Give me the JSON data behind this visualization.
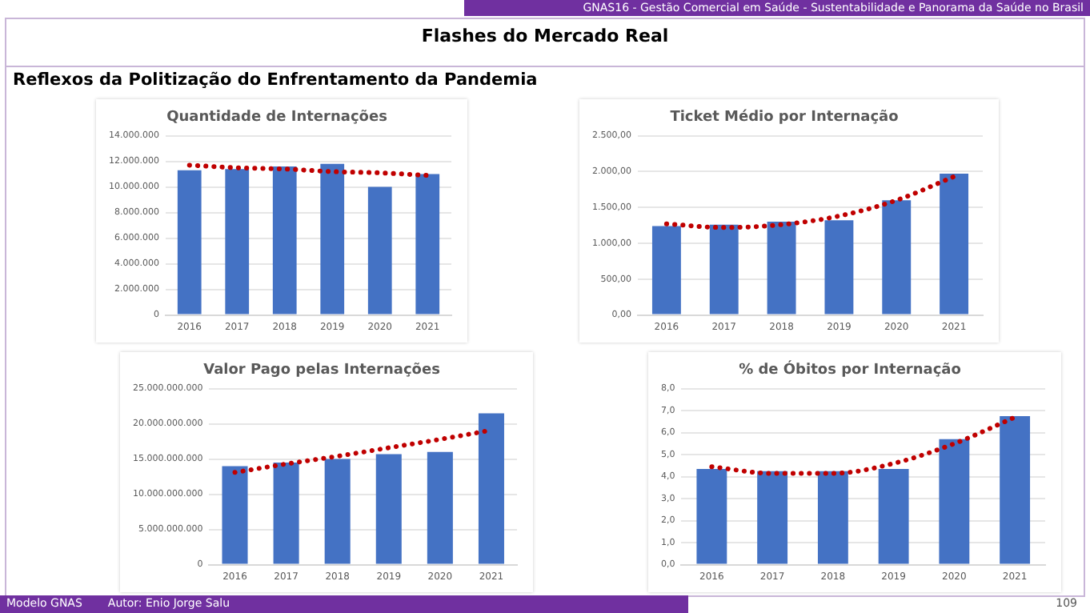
{
  "chart_data": [
    {
      "type": "other",
      "title": "Flashes do Mercado Real",
      "subtitle": "Reflexos da Politização do Enfrentamento da Pandemia",
      "annotations": [
        "GNAS16 - Gestão Comercial em Saúde - Sustentabilidade e Panorama da Saúde no Brasil",
        "Modelo GNAS",
        "Autor: Enio Jorge Salu",
        "109"
      ]
    },
    {
      "type": "bar",
      "title": "Quantidade de Internações",
      "categories": [
        "2016",
        "2017",
        "2018",
        "2019",
        "2020",
        "2021"
      ],
      "series": [
        {
          "type": "bar",
          "color": "#4472c4",
          "values": [
            11300000,
            11400000,
            11600000,
            11800000,
            10000000,
            11000000
          ]
        },
        {
          "type": "line",
          "color": "#c00000",
          "line_style": "dotted",
          "values": [
            11700000,
            11500000,
            11400000,
            11200000,
            11100000,
            10900000
          ]
        }
      ],
      "ylim": [
        0,
        14000000
      ],
      "yticks": [
        {
          "value": 0,
          "label": "0"
        },
        {
          "value": 2000000,
          "label": "2.000.000"
        },
        {
          "value": 4000000,
          "label": "4.000.000"
        },
        {
          "value": 6000000,
          "label": "6.000.000"
        },
        {
          "value": 8000000,
          "label": "8.000.000"
        },
        {
          "value": 10000000,
          "label": "10.000.000"
        },
        {
          "value": 12000000,
          "label": "12.000.000"
        },
        {
          "value": 14000000,
          "label": "14.000.000"
        }
      ],
      "grid": "y",
      "marker": "none"
    },
    {
      "type": "bar",
      "title": "Ticket Médio por Internação",
      "categories": [
        "2016",
        "2017",
        "2018",
        "2019",
        "2020",
        "2021"
      ],
      "series": [
        {
          "type": "bar",
          "color": "#4472c4",
          "values": [
            1240,
            1260,
            1300,
            1320,
            1600,
            1970
          ]
        },
        {
          "type": "line",
          "color": "#c00000",
          "line_style": "dotted",
          "values": [
            1270,
            1220,
            1260,
            1380,
            1600,
            1930
          ]
        }
      ],
      "ylim": [
        0,
        2500
      ],
      "yticks": [
        {
          "value": 0,
          "label": "0,00"
        },
        {
          "value": 500,
          "label": "500,00"
        },
        {
          "value": 1000,
          "label": "1.000,00"
        },
        {
          "value": 1500,
          "label": "1.500,00"
        },
        {
          "value": 2000,
          "label": "2.000,00"
        },
        {
          "value": 2500,
          "label": "2.500,00"
        }
      ],
      "grid": "y",
      "marker": "none"
    },
    {
      "type": "bar",
      "title": "Valor Pago pelas Internações",
      "categories": [
        "2016",
        "2017",
        "2018",
        "2019",
        "2020",
        "2021"
      ],
      "series": [
        {
          "type": "bar",
          "color": "#4472c4",
          "values": [
            14000000000,
            14500000000,
            15000000000,
            15700000000,
            16000000000,
            21500000000
          ]
        },
        {
          "type": "line",
          "color": "#c00000",
          "line_style": "dotted",
          "values": [
            13100000000,
            14300000000,
            15400000000,
            16600000000,
            17800000000,
            19100000000
          ]
        }
      ],
      "ylim": [
        0,
        25000000000
      ],
      "yticks": [
        0,
        {
          "value": 5000000000,
          "label": "5.000.000.000"
        },
        {
          "value": 10000000000,
          "label": "10.000.000.000"
        },
        {
          "value": 15000000000,
          "label": "15.000.000.000"
        },
        {
          "value": 20000000000,
          "label": "20.000.000.000"
        },
        {
          "value": 25000000000,
          "label": "25.000.000.000"
        }
      ],
      "grid": "y",
      "marker": "none"
    },
    {
      "type": "bar",
      "title": "% de Óbitos por Internação",
      "categories": [
        "2016",
        "2017",
        "2018",
        "2019",
        "2020",
        "2021"
      ],
      "series": [
        {
          "type": "bar",
          "color": "#4472c4",
          "values": [
            4.35,
            4.25,
            4.25,
            4.35,
            5.7,
            6.75
          ]
        },
        {
          "type": "line",
          "color": "#c00000",
          "line_style": "dotted",
          "values": [
            4.45,
            4.15,
            4.15,
            4.6,
            5.5,
            6.7
          ]
        }
      ],
      "ylim": [
        0,
        8
      ],
      "yticks": [
        {
          "value": 0,
          "label": "0,0"
        },
        {
          "value": 1,
          "label": "1,0"
        },
        {
          "value": 2,
          "label": "2,0"
        },
        {
          "value": 3,
          "label": "3,0"
        },
        {
          "value": 4,
          "label": "4,0"
        },
        {
          "value": 5,
          "label": "5,0"
        },
        {
          "value": 6,
          "label": "6,0"
        },
        {
          "value": 7,
          "label": "7,0"
        },
        {
          "value": 8,
          "label": "8,0"
        }
      ],
      "grid": "y",
      "marker": "none"
    }
  ]
}
